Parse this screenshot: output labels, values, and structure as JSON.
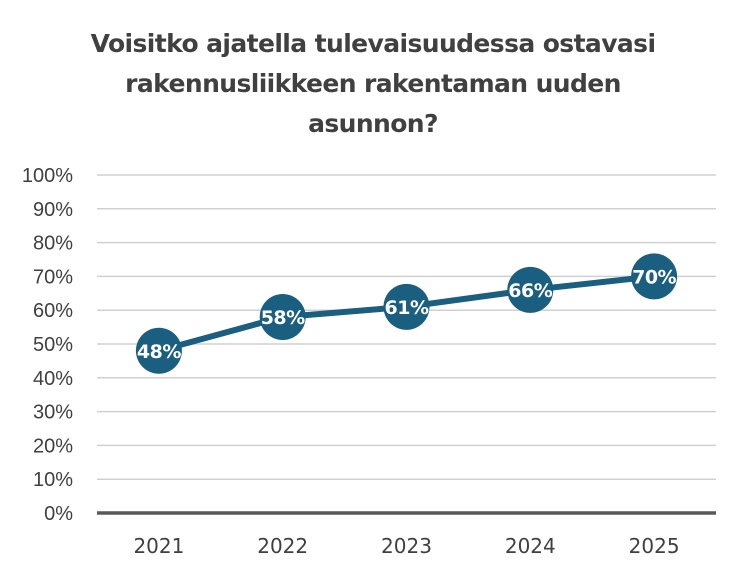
{
  "chart_data": {
    "type": "line",
    "title_lines": [
      "Voisitko ajatella tulevaisuudessa ostavasi",
      "rakennusliikkeen rakentaman uuden",
      "asunnon?"
    ],
    "title": "Voisitko ajatella tulevaisuudessa ostavasi rakennusliikkeen rakentaman uuden asunnon?",
    "xlabel": "",
    "ylabel": "",
    "categories": [
      "2021",
      "2022",
      "2023",
      "2024",
      "2025"
    ],
    "series": [
      {
        "name": "",
        "values": [
          48,
          58,
          61,
          66,
          70
        ],
        "labels": [
          "48%",
          "58%",
          "61%",
          "66%",
          "70%"
        ],
        "color": "#1a5e80"
      }
    ],
    "ylim": [
      0,
      100
    ],
    "yticks": [
      0,
      10,
      20,
      30,
      40,
      50,
      60,
      70,
      80,
      90,
      100
    ],
    "ytick_labels": [
      "0%",
      "10%",
      "20%",
      "30%",
      "40%",
      "50%",
      "60%",
      "70%",
      "80%",
      "90%",
      "100%"
    ],
    "grid": true,
    "legend": "none",
    "colors": {
      "line": "#1a5e80",
      "grid": "#d0d0d0",
      "axis": "#595959",
      "text": "#404040",
      "label_text": "#ffffff"
    }
  }
}
